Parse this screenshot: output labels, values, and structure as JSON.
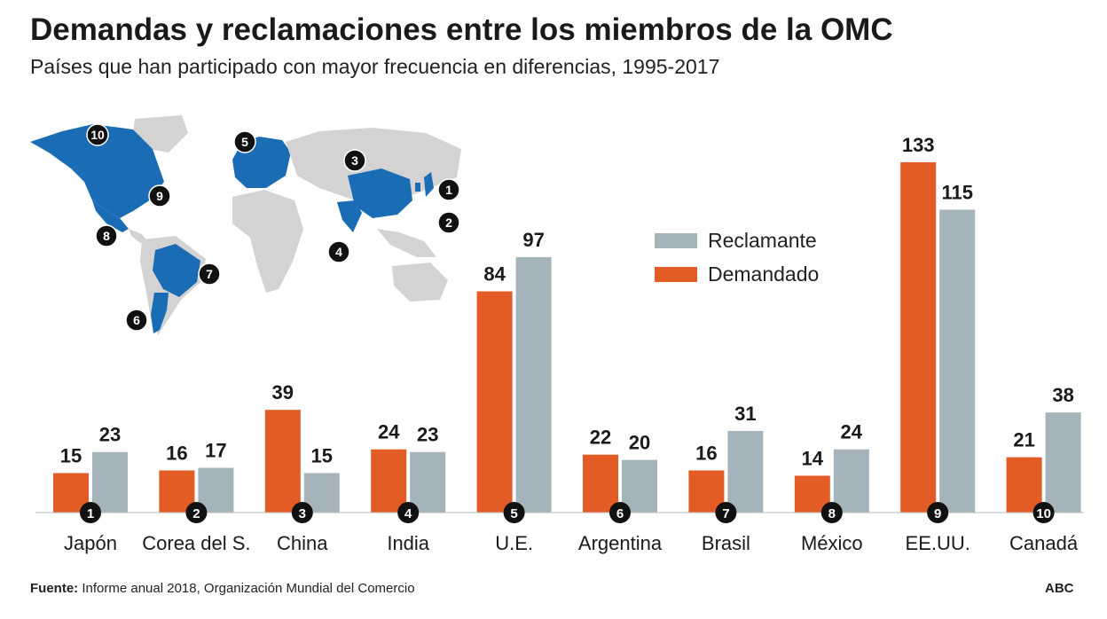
{
  "colors": {
    "demandado": "#e35b25",
    "reclamante": "#a4b4ba",
    "highlight": "#1a6cb5",
    "land": "#d3d3d3",
    "text": "#1a1a1a"
  },
  "chart_data": {
    "type": "bar",
    "title": "Demandas y reclamaciones entre los miembros de la OMC",
    "subtitle": "Países que han participado con mayor frecuencia en diferencias, 1995-2017",
    "categories": [
      "Japón",
      "Corea del S.",
      "China",
      "India",
      "U.E.",
      "Argentina",
      "Brasil",
      "México",
      "EE.UU.",
      "Canadá"
    ],
    "ranks": [
      "1",
      "2",
      "3",
      "4",
      "5",
      "6",
      "7",
      "8",
      "9",
      "10"
    ],
    "series": [
      {
        "name": "Demandado",
        "values": [
          15,
          16,
          39,
          24,
          84,
          22,
          16,
          14,
          133,
          21
        ]
      },
      {
        "name": "Reclamante",
        "values": [
          23,
          17,
          15,
          23,
          97,
          20,
          31,
          24,
          115,
          38
        ]
      }
    ],
    "legend": [
      "Reclamante",
      "Demandado"
    ],
    "ylim": [
      0,
      135
    ],
    "xlabel": "",
    "ylabel": ""
  },
  "map": {
    "markers": [
      "10",
      "5",
      "3",
      "1",
      "9",
      "2",
      "8",
      "4",
      "7",
      "6"
    ]
  },
  "footer": {
    "source_label": "Fuente:",
    "source_text": "Informe anual 2018, Organización Mundial del Comercio",
    "brand": "ABC"
  }
}
